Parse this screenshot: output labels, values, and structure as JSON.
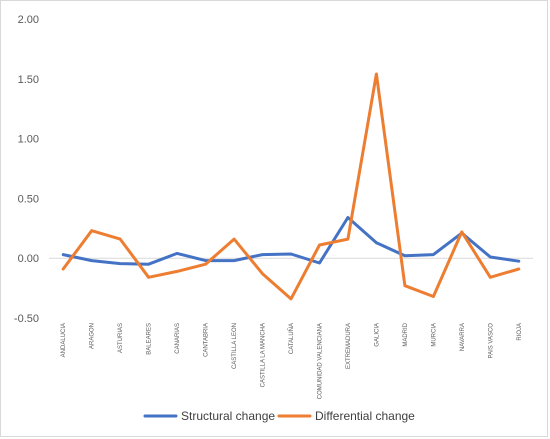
{
  "chart_data": {
    "type": "line",
    "title": "",
    "xlabel": "",
    "ylabel": "",
    "ylim": [
      -0.5,
      2.0
    ],
    "yticks": [
      "2.00",
      "1.50",
      "1.00",
      "0.50",
      "0.00",
      "-0.50"
    ],
    "ytick_values": [
      2.0,
      1.5,
      1.0,
      0.5,
      0.0,
      -0.5
    ],
    "grid": false,
    "legend_position": "bottom",
    "categories": [
      "ANDALUCIA",
      "ARAGON",
      "ASTURIAS",
      "BALEARES",
      "CANARIAS",
      "CANTABRIA",
      "CASTILLA LEON",
      "CASTILLA LA MANCHA",
      "CATALUÑA",
      "COMUNIDAD VALENCIANA",
      "EXTREMADURA",
      "GALICIA",
      "MADRID",
      "MURCIA",
      "NAVARRA",
      "PAIS VASCO",
      "RIOJA"
    ],
    "series": [
      {
        "name": "Structural change",
        "color": "#4472c4",
        "values": [
          0.03,
          -0.02,
          -0.045,
          -0.05,
          0.04,
          -0.02,
          -0.02,
          0.03,
          0.035,
          -0.04,
          0.34,
          0.13,
          0.02,
          0.03,
          0.21,
          0.01,
          -0.025
        ]
      },
      {
        "name": "Differential change",
        "color": "#ed7d31",
        "values": [
          -0.09,
          0.23,
          0.16,
          -0.16,
          -0.11,
          -0.05,
          0.16,
          -0.13,
          -0.34,
          0.11,
          0.16,
          1.54,
          -0.23,
          -0.32,
          0.22,
          -0.16,
          -0.09
        ]
      }
    ]
  }
}
